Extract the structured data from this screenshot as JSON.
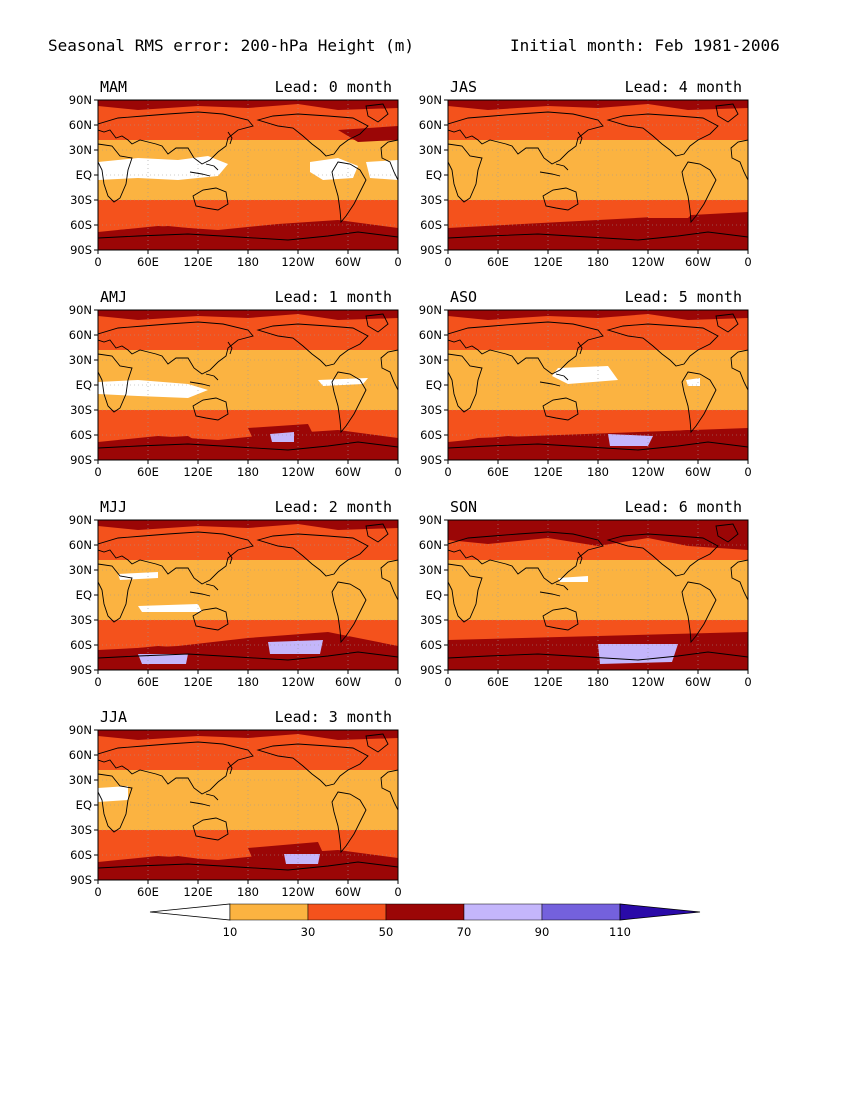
{
  "figure": {
    "title": "Seasonal RMS error: 200-hPa Height (m)",
    "subtitle": "Initial month: Feb 1981-2006"
  },
  "axes": {
    "lat_ticks": [
      "90N",
      "60N",
      "30N",
      "EQ",
      "30S",
      "60S",
      "90S"
    ],
    "lon_ticks": [
      "0",
      "60E",
      "120E",
      "180",
      "120W",
      "60W",
      "0"
    ]
  },
  "panels": [
    {
      "season": "MAM",
      "lead": "Lead: 0 month",
      "col": 0,
      "row": 0
    },
    {
      "season": "JAS",
      "lead": "Lead: 4 month",
      "col": 1,
      "row": 0
    },
    {
      "season": "AMJ",
      "lead": "Lead: 1 month",
      "col": 0,
      "row": 1
    },
    {
      "season": "ASO",
      "lead": "Lead: 5 month",
      "col": 1,
      "row": 1
    },
    {
      "season": "MJJ",
      "lead": "Lead: 2 month",
      "col": 0,
      "row": 2
    },
    {
      "season": "SON",
      "lead": "Lead: 6 month",
      "col": 1,
      "row": 2
    },
    {
      "season": "JJA",
      "lead": "Lead: 3 month",
      "col": 0,
      "row": 3
    }
  ],
  "colorbar": {
    "levels": [
      "10",
      "30",
      "50",
      "70",
      "90",
      "110"
    ],
    "colors": [
      "#ffffff",
      "#fbb341",
      "#f4521c",
      "#9b0606",
      "#c4b6fb",
      "#7461dd",
      "#2a0aa8"
    ]
  }
}
